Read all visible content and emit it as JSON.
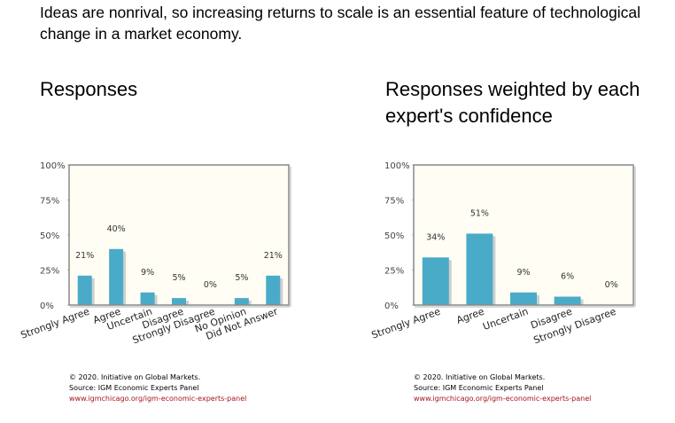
{
  "question": "Ideas are nonrival, so increasing returns to scale is an essential feature of technological change in a market economy.",
  "credits": {
    "copyright": "© 2020. Initiative on Global Markets.",
    "source": "Source: IGM Economic Experts Panel",
    "url": "www.igmchicago.org/igm-economic-experts-panel"
  },
  "colors": {
    "bar": "#4aabc8",
    "plot_bg": "#fffdf4",
    "frame": "#888888",
    "url": "#a5141c"
  },
  "chart_data": [
    {
      "type": "bar",
      "title": "Responses",
      "categories": [
        "Strongly Agree",
        "Agree",
        "Uncertain",
        "Disagree",
        "Strongly Disagree",
        "No Opinion",
        "Did Not Answer"
      ],
      "values": [
        21,
        40,
        9,
        5,
        0,
        5,
        21
      ],
      "value_labels": [
        "21%",
        "40%",
        "9%",
        "5%",
        "0%",
        "5%",
        "21%"
      ],
      "y_ticks": [
        "0%",
        "25%",
        "50%",
        "75%",
        "100%"
      ],
      "ylim": [
        0,
        100
      ],
      "grid": false
    },
    {
      "type": "bar",
      "title": "Responses weighted by each expert's confidence",
      "categories": [
        "Strongly Agree",
        "Agree",
        "Uncertain",
        "Disagree",
        "Strongly Disagree"
      ],
      "values": [
        34,
        51,
        9,
        6,
        0
      ],
      "value_labels": [
        "34%",
        "51%",
        "9%",
        "6%",
        "0%"
      ],
      "y_ticks": [
        "0%",
        "25%",
        "50%",
        "75%",
        "100%"
      ],
      "ylim": [
        0,
        100
      ],
      "grid": false
    }
  ]
}
